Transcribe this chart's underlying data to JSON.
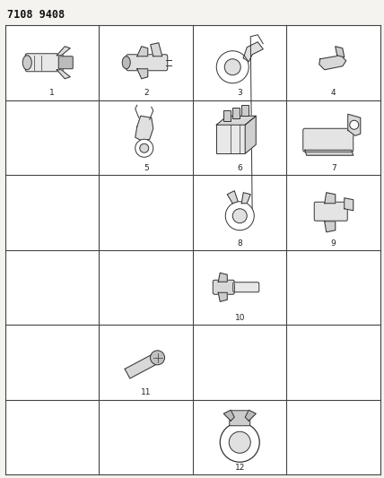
{
  "title": "7108 9408",
  "title_fontsize": 8.5,
  "background_color": "#f5f3ef",
  "cell_bg": "#ffffff",
  "grid_rows": 6,
  "grid_cols": 4,
  "border_color": "#444444",
  "border_linewidth": 0.8,
  "items": [
    {
      "num": "1",
      "row": 0,
      "col": 0,
      "label": "1"
    },
    {
      "num": "2",
      "row": 0,
      "col": 1,
      "label": "2"
    },
    {
      "num": "3",
      "row": 0,
      "col": 2,
      "label": "3"
    },
    {
      "num": "4",
      "row": 0,
      "col": 3,
      "label": "4"
    },
    {
      "num": "5",
      "row": 1,
      "col": 1,
      "label": "5"
    },
    {
      "num": "6",
      "row": 1,
      "col": 2,
      "label": "6"
    },
    {
      "num": "7",
      "row": 1,
      "col": 3,
      "label": "7"
    },
    {
      "num": "8",
      "row": 2,
      "col": 2,
      "label": "8"
    },
    {
      "num": "9",
      "row": 2,
      "col": 3,
      "label": "9"
    },
    {
      "num": "10",
      "row": 3,
      "col": 2,
      "label": "10"
    },
    {
      "num": "11",
      "row": 4,
      "col": 1,
      "label": "11"
    },
    {
      "num": "12",
      "row": 5,
      "col": 2,
      "label": "12"
    }
  ],
  "figsize": [
    4.28,
    5.33
  ],
  "dpi": 100,
  "label_fontsize": 6.5,
  "label_color": "#222222"
}
